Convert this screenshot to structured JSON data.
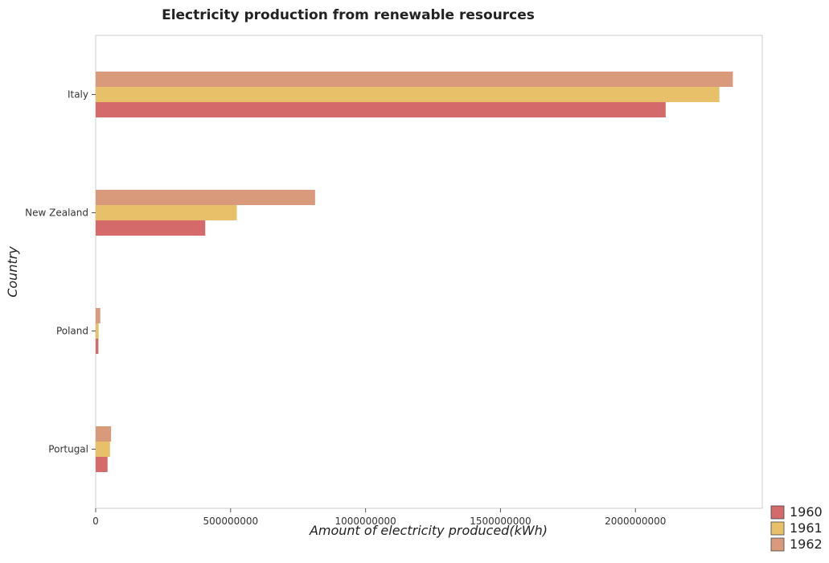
{
  "chart_data": {
    "type": "bar",
    "orientation": "horizontal",
    "title": "Electricity production from renewable resources",
    "xlabel": "Amount of electricity produced(kWh)",
    "ylabel": "Country",
    "categories": [
      "Italy",
      "New Zealand",
      "Poland",
      "Portugal"
    ],
    "series": [
      {
        "name": "1960",
        "color": "#d46a6a",
        "values": [
          2112000000,
          406000000,
          10000000,
          44000000
        ]
      },
      {
        "name": "1961",
        "color": "#e8c06a",
        "values": [
          2311000000,
          523000000,
          11000000,
          53000000
        ]
      },
      {
        "name": "1962",
        "color": "#d89a7a",
        "values": [
          2361000000,
          813000000,
          17000000,
          57000000
        ]
      }
    ],
    "xticks": [
      0,
      500000000,
      1000000000,
      1500000000,
      2000000000
    ],
    "xtick_labels": [
      "0",
      "500000000",
      "1000000000",
      "1500000000",
      "2000000000"
    ],
    "xlim": [
      0,
      2470000000
    ],
    "grid": false,
    "legend_position": "bottom-right"
  }
}
